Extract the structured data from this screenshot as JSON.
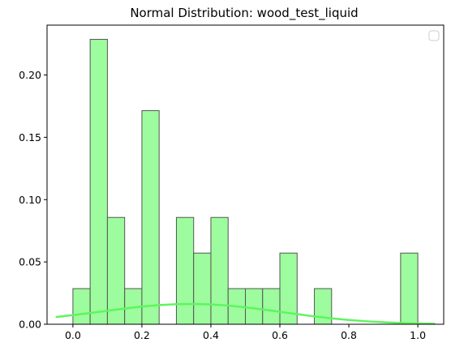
{
  "chart_data": {
    "type": "bar",
    "title": "Normal Distribution: wood_test_liquid",
    "xlabel": "",
    "ylabel": "",
    "xlim": [
      -0.075,
      1.075
    ],
    "ylim": [
      0,
      0.24
    ],
    "bin_edges": [
      0.0,
      0.05,
      0.1,
      0.15,
      0.2,
      0.25,
      0.3,
      0.35,
      0.4,
      0.45,
      0.5,
      0.55,
      0.6,
      0.65,
      0.7,
      0.75,
      0.8,
      0.85,
      0.9,
      0.95,
      1.0
    ],
    "values": [
      0.0286,
      0.2286,
      0.0857,
      0.0286,
      0.1714,
      0,
      0.0857,
      0.0571,
      0.0857,
      0.0286,
      0.0286,
      0.0286,
      0.0571,
      0,
      0.0286,
      0,
      0,
      0,
      0,
      0.0571
    ],
    "curve": {
      "x": [
        -0.05,
        0.0,
        0.05,
        0.1,
        0.15,
        0.2,
        0.25,
        0.3,
        0.35,
        0.4,
        0.45,
        0.5,
        0.55,
        0.6,
        0.65,
        0.7,
        0.75,
        0.8,
        0.85,
        0.9,
        0.95,
        1.0,
        1.05
      ],
      "y": [
        0.0058,
        0.0073,
        0.009,
        0.0108,
        0.0126,
        0.0142,
        0.0154,
        0.0161,
        0.0163,
        0.0159,
        0.015,
        0.0136,
        0.0119,
        0.01,
        0.0081,
        0.0063,
        0.0047,
        0.0034,
        0.0024,
        0.0016,
        0.001,
        0.0006,
        0.0004
      ]
    },
    "xticks": [
      0.0,
      0.2,
      0.4,
      0.6,
      0.8,
      1.0
    ],
    "xtick_labels": [
      "0.0",
      "0.2",
      "0.4",
      "0.6",
      "0.8",
      "1.0"
    ],
    "yticks": [
      0.0,
      0.05,
      0.1,
      0.15,
      0.2
    ],
    "ytick_labels": [
      "0.00",
      "0.05",
      "0.10",
      "0.15",
      "0.20"
    ],
    "legend": "top-right",
    "grid": false,
    "colors": {
      "bar_fill": "#9dfc9d",
      "bar_edge": "#555555",
      "curve": "#5ef55e",
      "axis": "#000000"
    }
  }
}
